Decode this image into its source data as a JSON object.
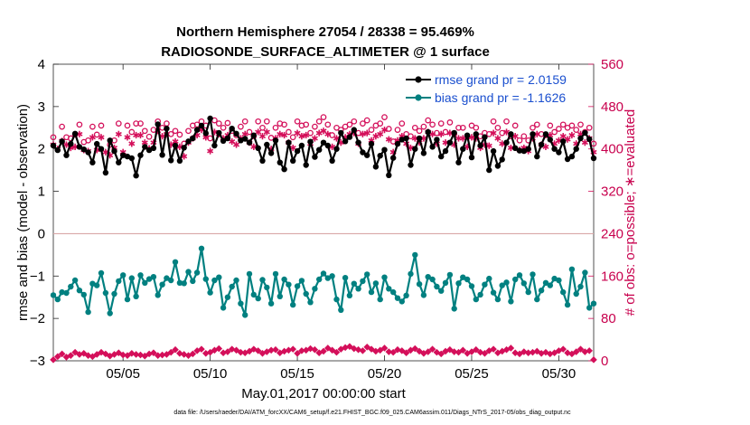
{
  "figure": {
    "title_line1": "Northern Hemisphere 27054 / 28338 = 95.469%",
    "title_line2": "RADIOSONDE_SURFACE_ALTIMETER @ 1 surface",
    "footer": "data file: /Users/raeder/DAI/ATM_forcXX/CAM6_setup/f.e21.FHIST_BGC.f09_025.CAM6assim.011/Diags_NTrS_2017-05/obs_diag_output.nc"
  },
  "colors": {
    "rmse": "#000000",
    "bias": "#008080",
    "counts": "#d40f5a",
    "legend_text": "#1a4fcf",
    "zero_line": "#d9a7a7"
  },
  "chart_data": {
    "type": "line",
    "title": "Northern Hemisphere 27054 / 28338 = 95.469%\nRADIOSONDE_SURFACE_ALTIMETER @ 1 surface",
    "xlabel": "May.01,2017 00:00:00 start",
    "ylabel": "rmse and bias (model - observation)",
    "ylabel_right": "# of obs: o=possible; ∗=evaluated",
    "xlim": [
      1.0,
      32.0
    ],
    "ylim": [
      -3,
      4
    ],
    "ylim_right": [
      0,
      560
    ],
    "x_ticks": [
      5,
      10,
      15,
      20,
      25,
      30
    ],
    "x_tick_labels": [
      "05/05",
      "05/10",
      "05/15",
      "05/20",
      "05/25",
      "05/30"
    ],
    "y_ticks": [
      -3,
      -2,
      -1,
      0,
      1,
      2,
      3,
      4
    ],
    "y_tick_labels": [
      "−3",
      "−2",
      "−1",
      "0",
      "1",
      "2",
      "3",
      "4"
    ],
    "y_right_ticks": [
      0,
      80,
      160,
      240,
      320,
      400,
      480,
      560
    ],
    "y_right_tick_labels": [
      "0",
      "80",
      "160",
      "240",
      "320",
      "400",
      "480",
      "560"
    ],
    "zero_line": 0,
    "legend": [
      "rmse grand pr = 2.0159",
      "bias grand pr = -1.1626"
    ],
    "legend_position": "top-right",
    "x": [
      1.0,
      1.25,
      1.5,
      1.75,
      2.0,
      2.25,
      2.5,
      2.75,
      3.0,
      3.25,
      3.5,
      3.75,
      4.0,
      4.25,
      4.5,
      4.75,
      5.0,
      5.25,
      5.5,
      5.75,
      6.0,
      6.25,
      6.5,
      6.75,
      7.0,
      7.25,
      7.5,
      7.75,
      8.0,
      8.25,
      8.5,
      8.75,
      9.0,
      9.25,
      9.5,
      9.75,
      10.0,
      10.25,
      10.5,
      10.75,
      11.0,
      11.25,
      11.5,
      11.75,
      12.0,
      12.25,
      12.5,
      12.75,
      13.0,
      13.25,
      13.5,
      13.75,
      14.0,
      14.25,
      14.5,
      14.75,
      15.0,
      15.25,
      15.5,
      15.75,
      16.0,
      16.25,
      16.5,
      16.75,
      17.0,
      17.25,
      17.5,
      17.75,
      18.0,
      18.25,
      18.5,
      18.75,
      19.0,
      19.25,
      19.5,
      19.75,
      20.0,
      20.25,
      20.5,
      20.75,
      21.0,
      21.25,
      21.5,
      21.75,
      22.0,
      22.25,
      22.5,
      22.75,
      23.0,
      23.25,
      23.5,
      23.75,
      24.0,
      24.25,
      24.5,
      24.75,
      25.0,
      25.25,
      25.5,
      25.75,
      26.0,
      26.25,
      26.5,
      26.75,
      27.0,
      27.25,
      27.5,
      27.75,
      28.0,
      28.25,
      28.5,
      28.75,
      29.0,
      29.25,
      29.5,
      29.75,
      30.0,
      30.25,
      30.5,
      30.75,
      31.0,
      31.25,
      31.5,
      31.75,
      32.0
    ],
    "series": [
      {
        "name": "rmse",
        "axis": "left",
        "values": [
          2.08,
          1.97,
          2.18,
          1.85,
          2.12,
          2.36,
          2.05,
          1.99,
          1.92,
          1.68,
          2.12,
          2.0,
          1.44,
          2.2,
          1.95,
          1.68,
          1.85,
          1.82,
          1.78,
          1.37,
          1.85,
          2.05,
          1.97,
          2.02,
          2.58,
          1.86,
          2.48,
          1.73,
          2.08,
          1.72,
          2.03,
          2.18,
          2.25,
          2.45,
          2.55,
          2.37,
          2.72,
          2.08,
          2.38,
          2.19,
          2.25,
          2.48,
          2.36,
          2.2,
          2.24,
          2.15,
          2.32,
          2.02,
          1.72,
          2.1,
          1.9,
          2.2,
          1.68,
          1.52,
          2.15,
          1.72,
          1.95,
          2.08,
          1.62,
          2.17,
          1.81,
          1.98,
          2.15,
          2.08,
          1.72,
          2.0,
          2.38,
          2.18,
          2.28,
          2.45,
          2.15,
          1.92,
          1.85,
          2.12,
          1.58,
          1.84,
          1.98,
          1.38,
          1.79,
          2.12,
          2.22,
          2.25,
          1.62,
          2.0,
          2.25,
          1.9,
          2.4,
          2.05,
          2.22,
          1.82,
          1.95,
          2.15,
          2.38,
          1.68,
          2.0,
          2.32,
          1.8,
          2.35,
          2.08,
          2.28,
          1.5,
          1.95,
          1.6,
          1.75,
          2.15,
          2.35,
          2.02,
          1.96,
          1.95,
          2.0,
          2.35,
          1.82,
          2.1,
          2.35,
          2.22,
          2.0,
          1.92,
          2.18,
          1.76,
          1.82,
          2.0,
          2.25,
          2.38,
          2.23,
          1.78
        ]
      },
      {
        "name": "bias",
        "axis": "left",
        "values": [
          -1.45,
          -1.55,
          -1.38,
          -1.4,
          -1.25,
          -1.1,
          -1.34,
          -1.44,
          -1.85,
          -1.18,
          -1.22,
          -0.93,
          -1.4,
          -1.88,
          -1.42,
          -1.12,
          -0.98,
          -1.55,
          -1.05,
          -1.48,
          -0.98,
          -1.16,
          -1.07,
          -1.02,
          -1.45,
          -1.2,
          -1.05,
          -1.1,
          -0.67,
          -1.16,
          -1.17,
          -0.9,
          -1.12,
          -0.92,
          -0.35,
          -1.07,
          -1.39,
          -1.1,
          -1.03,
          -1.75,
          -1.5,
          -1.25,
          -1.1,
          -1.65,
          -1.92,
          -0.95,
          -1.44,
          -1.53,
          -1.09,
          -1.27,
          -1.65,
          -0.95,
          -1.48,
          -1.08,
          -1.2,
          -1.68,
          -1.24,
          -1.11,
          -1.42,
          -1.62,
          -1.3,
          -1.08,
          -0.94,
          -1.05,
          -1.0,
          -1.55,
          -1.8,
          -1.04,
          -1.46,
          -1.18,
          -1.3,
          -1.12,
          -0.96,
          -1.38,
          -1.17,
          -1.55,
          -1.03,
          -1.3,
          -1.38,
          -1.52,
          -1.6,
          -1.46,
          -0.95,
          -0.5,
          -1.19,
          -1.45,
          -1.02,
          -1.08,
          -1.25,
          -1.35,
          -1.16,
          -0.97,
          -1.77,
          -1.17,
          -1.03,
          -1.08,
          -1.24,
          -1.55,
          -1.44,
          -1.2,
          -1.06,
          -1.39,
          -1.55,
          -1.22,
          -1.15,
          -1.6,
          -1.08,
          -0.98,
          -1.17,
          -1.38,
          -0.96,
          -1.55,
          -1.34,
          -1.16,
          -1.22,
          -1.06,
          -1.1,
          -1.38,
          -1.68,
          -0.84,
          -1.42,
          -1.25,
          -0.92,
          -1.75,
          -1.65
        ]
      },
      {
        "name": "observations possible",
        "axis": "right",
        "values": [
          422,
          null,
          442,
          422,
          420,
          427,
          446,
          413,
          416,
          442,
          427,
          444,
          null,
          408,
          416,
          448,
          null,
          444,
          432,
          448,
          448,
          434,
          423,
          436,
          452,
          440,
          448,
          428,
          434,
          427,
          410,
          434,
          444,
          446,
          452,
          444,
          420,
          454,
          448,
          440,
          449,
          434,
          426,
          442,
          452,
          432,
          424,
          452,
          440,
          452,
          421,
          440,
          448,
          446,
          432,
          422,
          452,
          444,
          446,
          430,
          442,
          452,
          460,
          446,
          426,
          440,
          436,
          442,
          446,
          452,
          430,
          448,
          454,
          436,
          444,
          448,
          460,
          438,
          414,
          436,
          448,
          428,
          424,
          440,
          434,
          442,
          454,
          446,
          430,
          448,
          432,
          450,
          428,
          440,
          440,
          424,
          444,
          440,
          424,
          430,
          428,
          452,
          440,
          430,
          452,
          424,
          444,
          416,
          424,
          416,
          440,
          446,
          428,
          426,
          444,
          432,
          438,
          446,
          440,
          444,
          436,
          446,
          432,
          440,
          410
        ]
      },
      {
        "name": "observations evaluated",
        "axis": "right",
        "values": [
          408,
          400,
          415,
          408,
          402,
          404,
          428,
          398,
          396,
          422,
          398,
          422,
          394,
          388,
          402,
          428,
          394,
          422,
          410,
          426,
          426,
          412,
          401,
          412,
          434,
          424,
          428,
          408,
          414,
          404,
          386,
          412,
          420,
          426,
          436,
          422,
          396,
          432,
          428,
          420,
          426,
          414,
          408,
          420,
          428,
          412,
          404,
          432,
          424,
          432,
          400,
          420,
          428,
          426,
          412,
          402,
          430,
          424,
          426,
          410,
          420,
          430,
          434,
          428,
          404,
          420,
          412,
          422,
          428,
          430,
          410,
          428,
          430,
          416,
          424,
          428,
          436,
          418,
          394,
          416,
          424,
          410,
          402,
          420,
          412,
          420,
          432,
          428,
          410,
          428,
          412,
          430,
          408,
          420,
          420,
          404,
          422,
          420,
          402,
          408,
          406,
          430,
          420,
          410,
          432,
          402,
          424,
          398,
          402,
          396,
          420,
          428,
          408,
          404,
          426,
          410,
          416,
          424,
          418,
          426,
          410,
          428,
          412,
          420,
          394
        ]
      },
      {
        "name": "counts lower row",
        "axis": "right",
        "values": [
          2,
          8,
          13,
          7,
          10,
          16,
          12,
          14,
          10,
          8,
          12,
          16,
          13,
          9,
          12,
          15,
          11,
          10,
          14,
          12,
          11,
          9,
          13,
          15,
          10,
          11,
          12,
          16,
          21,
          14,
          12,
          10,
          13,
          19,
          22,
          14,
          16,
          20,
          23,
          15,
          17,
          22,
          20,
          16,
          15,
          18,
          22,
          19,
          14,
          17,
          20,
          21,
          15,
          18,
          20,
          22,
          14,
          19,
          20,
          23,
          21,
          15,
          18,
          24,
          20,
          16,
          22,
          25,
          27,
          23,
          21,
          19,
          26,
          22,
          18,
          20,
          24,
          17,
          16,
          21,
          19,
          15,
          20,
          23,
          18,
          14,
          17,
          22,
          16,
          13,
          18,
          21,
          17,
          16,
          20,
          14,
          17,
          21,
          16,
          14,
          19,
          22,
          15,
          18,
          21,
          24,
          15,
          13,
          17,
          15,
          16,
          18,
          14,
          16,
          13,
          15,
          19,
          22,
          15,
          13,
          17,
          22,
          17,
          19,
          2
        ]
      }
    ]
  }
}
